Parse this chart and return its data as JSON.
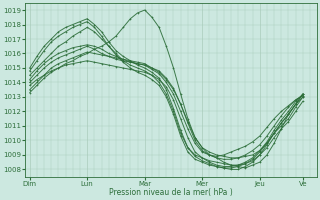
{
  "xlabel": "Pression niveau de la mer( hPa )",
  "background_color": "#cce8e0",
  "plot_bg_color": "#cce8e0",
  "grid_major_color": "#aaccbb",
  "grid_minor_color": "#bbddd0",
  "line_color": "#2d6e3a",
  "ylim": [
    1007.5,
    1019.5
  ],
  "yticks": [
    1008,
    1009,
    1010,
    1011,
    1012,
    1013,
    1014,
    1015,
    1016,
    1017,
    1018,
    1019
  ],
  "day_labels": [
    "Dim",
    "Lun",
    "Mar",
    "Mer",
    "Jeu",
    "Ve"
  ],
  "day_positions": [
    0,
    24,
    48,
    72,
    96,
    114
  ],
  "xlim": [
    -2,
    120
  ],
  "lines": [
    [
      0,
      1013.3,
      3,
      1013.8,
      6,
      1014.3,
      9,
      1014.7,
      12,
      1015.0,
      15,
      1015.3,
      18,
      1015.5,
      21,
      1015.8,
      24,
      1016.0,
      27,
      1016.3,
      30,
      1016.5,
      33,
      1016.8,
      36,
      1017.2,
      39,
      1017.8,
      42,
      1018.4,
      45,
      1018.8,
      48,
      1019.0,
      51,
      1018.5,
      54,
      1017.8,
      57,
      1016.5,
      60,
      1015.0,
      63,
      1013.2,
      66,
      1011.5,
      69,
      1010.2,
      72,
      1009.5,
      75,
      1009.0,
      78,
      1008.8,
      81,
      1008.5,
      84,
      1008.3,
      87,
      1008.2,
      90,
      1008.1,
      93,
      1008.3,
      96,
      1008.5,
      99,
      1009.0,
      102,
      1009.8,
      105,
      1010.8,
      108,
      1011.8,
      111,
      1012.5,
      114,
      1013.2
    ],
    [
      0,
      1013.5,
      3,
      1014.0,
      6,
      1014.5,
      9,
      1015.0,
      12,
      1015.3,
      15,
      1015.5,
      18,
      1015.7,
      21,
      1015.9,
      24,
      1016.1,
      27,
      1016.0,
      30,
      1015.9,
      33,
      1015.8,
      36,
      1015.7,
      39,
      1015.6,
      42,
      1015.5,
      45,
      1015.4,
      48,
      1015.3,
      51,
      1015.0,
      54,
      1014.7,
      57,
      1014.2,
      60,
      1013.5,
      63,
      1012.5,
      66,
      1011.3,
      69,
      1010.2,
      72,
      1009.5,
      75,
      1009.2,
      78,
      1009.0,
      81,
      1008.9,
      84,
      1008.8,
      87,
      1008.8,
      90,
      1008.9,
      93,
      1009.0,
      96,
      1009.3,
      99,
      1009.8,
      102,
      1010.5,
      105,
      1011.2,
      108,
      1011.8,
      111,
      1012.5,
      114,
      1013.0
    ],
    [
      0,
      1014.0,
      3,
      1014.5,
      6,
      1015.0,
      9,
      1015.4,
      12,
      1015.7,
      15,
      1015.9,
      18,
      1016.1,
      21,
      1016.3,
      24,
      1016.5,
      27,
      1016.3,
      30,
      1016.0,
      33,
      1015.8,
      36,
      1015.6,
      39,
      1015.5,
      42,
      1015.4,
      45,
      1015.3,
      48,
      1015.2,
      51,
      1015.0,
      54,
      1014.8,
      57,
      1014.3,
      60,
      1013.6,
      63,
      1012.5,
      66,
      1011.2,
      69,
      1010.0,
      72,
      1009.3,
      75,
      1009.0,
      78,
      1008.8,
      81,
      1008.7,
      84,
      1008.7,
      87,
      1008.8,
      90,
      1009.0,
      93,
      1009.3,
      96,
      1009.7,
      99,
      1010.3,
      102,
      1011.0,
      105,
      1011.7,
      108,
      1012.3,
      111,
      1012.8,
      114,
      1013.1
    ],
    [
      0,
      1014.2,
      3,
      1014.8,
      6,
      1015.3,
      9,
      1015.7,
      12,
      1016.0,
      15,
      1016.2,
      18,
      1016.4,
      21,
      1016.5,
      24,
      1016.6,
      27,
      1016.5,
      30,
      1016.3,
      33,
      1016.0,
      36,
      1015.8,
      39,
      1015.6,
      42,
      1015.4,
      45,
      1015.3,
      48,
      1015.2,
      51,
      1014.9,
      54,
      1014.6,
      57,
      1014.0,
      60,
      1013.2,
      63,
      1012.0,
      66,
      1010.8,
      69,
      1009.8,
      72,
      1009.2,
      75,
      1009.0,
      78,
      1008.9,
      81,
      1009.0,
      84,
      1009.2,
      87,
      1009.4,
      90,
      1009.6,
      93,
      1009.9,
      96,
      1010.3,
      99,
      1010.9,
      102,
      1011.5,
      105,
      1012.0,
      108,
      1012.4,
      111,
      1012.8,
      114,
      1013.1
    ],
    [
      0,
      1014.5,
      3,
      1015.0,
      6,
      1015.5,
      9,
      1016.0,
      12,
      1016.5,
      15,
      1016.8,
      18,
      1017.2,
      21,
      1017.5,
      24,
      1017.8,
      27,
      1017.5,
      30,
      1017.0,
      33,
      1016.5,
      36,
      1016.0,
      39,
      1015.5,
      42,
      1015.2,
      45,
      1015.0,
      48,
      1014.8,
      51,
      1014.5,
      54,
      1014.0,
      57,
      1013.2,
      60,
      1012.0,
      63,
      1010.5,
      66,
      1009.5,
      69,
      1009.0,
      72,
      1008.8,
      75,
      1008.6,
      78,
      1008.5,
      81,
      1008.4,
      84,
      1008.3,
      87,
      1008.3,
      90,
      1008.4,
      93,
      1008.6,
      96,
      1009.0,
      99,
      1009.5,
      102,
      1010.2,
      105,
      1010.8,
      108,
      1011.3,
      111,
      1012.0,
      114,
      1012.7
    ],
    [
      0,
      1014.8,
      3,
      1015.5,
      6,
      1016.2,
      9,
      1016.8,
      12,
      1017.2,
      15,
      1017.5,
      18,
      1017.8,
      21,
      1018.0,
      24,
      1018.2,
      27,
      1017.8,
      30,
      1017.2,
      33,
      1016.5,
      36,
      1015.9,
      39,
      1015.4,
      42,
      1015.0,
      45,
      1014.7,
      48,
      1014.5,
      51,
      1014.2,
      54,
      1013.8,
      57,
      1013.0,
      60,
      1011.8,
      63,
      1010.3,
      66,
      1009.2,
      69,
      1008.7,
      72,
      1008.5,
      75,
      1008.3,
      78,
      1008.2,
      81,
      1008.1,
      84,
      1008.1,
      87,
      1008.2,
      90,
      1008.4,
      93,
      1008.7,
      96,
      1009.2,
      99,
      1009.8,
      102,
      1010.5,
      105,
      1011.0,
      108,
      1011.5,
      111,
      1012.3,
      114,
      1013.0
    ],
    [
      0,
      1015.0,
      3,
      1015.8,
      6,
      1016.5,
      9,
      1017.0,
      12,
      1017.5,
      15,
      1017.8,
      18,
      1018.0,
      21,
      1018.2,
      24,
      1018.4,
      27,
      1018.0,
      30,
      1017.5,
      33,
      1016.8,
      36,
      1016.2,
      39,
      1015.8,
      42,
      1015.5,
      45,
      1015.2,
      48,
      1015.0,
      51,
      1014.7,
      54,
      1014.3,
      57,
      1013.5,
      60,
      1012.2,
      63,
      1010.7,
      66,
      1009.5,
      69,
      1008.9,
      72,
      1008.6,
      75,
      1008.4,
      78,
      1008.2,
      81,
      1008.1,
      84,
      1008.0,
      87,
      1008.0,
      90,
      1008.2,
      93,
      1008.5,
      96,
      1009.0,
      99,
      1009.7,
      102,
      1010.5,
      105,
      1011.2,
      108,
      1011.8,
      111,
      1012.5,
      114,
      1013.2
    ],
    [
      0,
      1013.8,
      3,
      1014.2,
      6,
      1014.5,
      9,
      1014.8,
      12,
      1015.0,
      15,
      1015.2,
      18,
      1015.3,
      21,
      1015.4,
      24,
      1015.5,
      27,
      1015.4,
      30,
      1015.3,
      33,
      1015.2,
      36,
      1015.1,
      39,
      1015.0,
      42,
      1014.9,
      45,
      1014.8,
      48,
      1014.7,
      51,
      1014.5,
      54,
      1014.2,
      57,
      1013.7,
      60,
      1012.8,
      63,
      1011.5,
      66,
      1010.2,
      69,
      1009.2,
      72,
      1008.8,
      75,
      1008.5,
      78,
      1008.3,
      81,
      1008.2,
      84,
      1008.2,
      87,
      1008.3,
      90,
      1008.5,
      93,
      1008.8,
      96,
      1009.3,
      99,
      1009.9,
      102,
      1010.7,
      105,
      1011.4,
      108,
      1012.0,
      111,
      1012.7,
      114,
      1013.2
    ]
  ]
}
